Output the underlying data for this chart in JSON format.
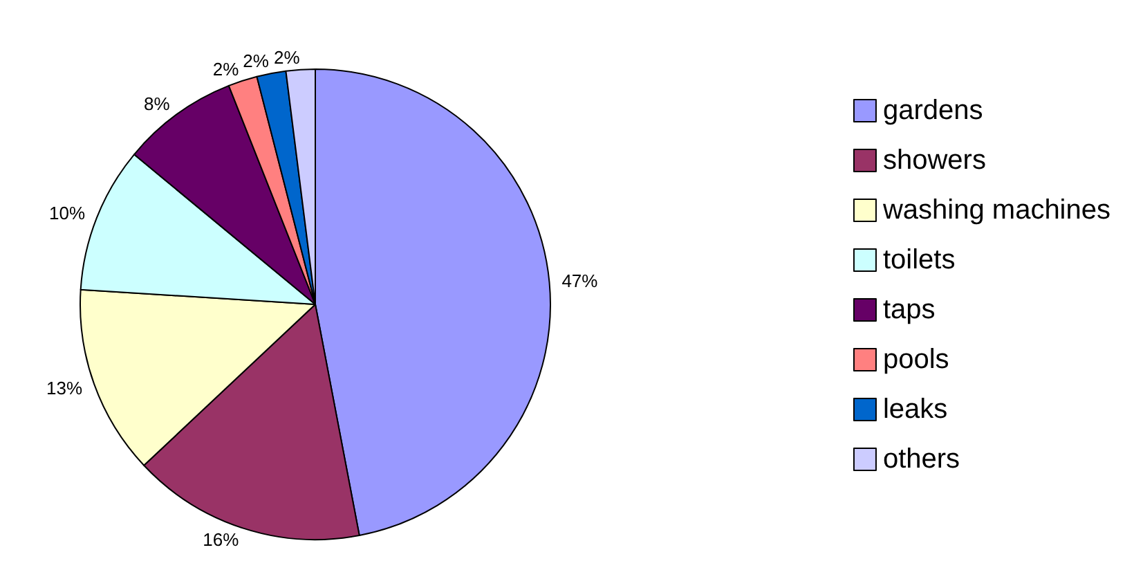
{
  "chart_data": {
    "type": "pie",
    "categories": [
      "gardens",
      "showers",
      "washing machines",
      "toilets",
      "taps",
      "pools",
      "leaks",
      "others"
    ],
    "values": [
      47,
      16,
      13,
      10,
      8,
      2,
      2,
      2
    ],
    "colors": [
      "#9999ff",
      "#993366",
      "#ffffcc",
      "#ccffff",
      "#660066",
      "#ff8080",
      "#0066cc",
      "#ccccff"
    ],
    "value_labels": [
      "47%",
      "16%",
      "13%",
      "10%",
      "8%",
      "2%",
      "2%",
      "2%"
    ],
    "legend": "right"
  }
}
